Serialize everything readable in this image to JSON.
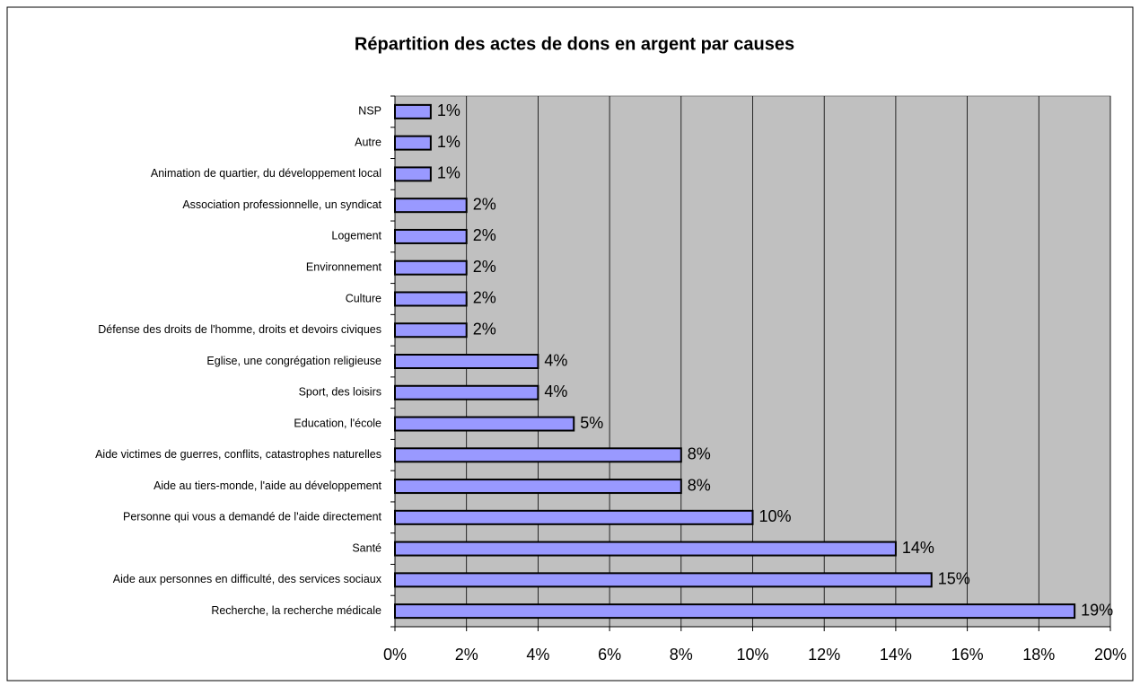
{
  "chart_data": {
    "type": "barh",
    "title": "Répartition des actes de dons en argent par causes",
    "categories": [
      "NSP",
      "Autre",
      "Animation de quartier, du développement local",
      "Association professionnelle, un syndicat",
      "Logement",
      "Environnement",
      "Culture",
      "Défense des droits de l'homme, droits et devoirs civiques",
      "Eglise, une congrégation religieuse",
      "Sport, des loisirs",
      "Education, l'école",
      "Aide victimes de guerres, conflits, catastrophes naturelles",
      "Aide au tiers-monde, l'aide au développement",
      "Personne qui vous a demandé de l'aide directement",
      "Santé",
      "Aide aux personnes en difficulté, des services sociaux",
      "Recherche, la recherche médicale"
    ],
    "values": [
      1,
      1,
      1,
      2,
      2,
      2,
      2,
      2,
      4,
      4,
      5,
      8,
      8,
      10,
      14,
      15,
      19
    ],
    "value_labels": [
      "1%",
      "1%",
      "1%",
      "2%",
      "2%",
      "2%",
      "2%",
      "2%",
      "4%",
      "4%",
      "5%",
      "8%",
      "8%",
      "10%",
      "14%",
      "15%",
      "19%"
    ],
    "color": "#9999ff",
    "xlim": [
      0,
      20
    ],
    "xticks": [
      {
        "value": 0,
        "label": "0%"
      },
      {
        "value": 2,
        "label": "2%"
      },
      {
        "value": 4,
        "label": "4%"
      },
      {
        "value": 6,
        "label": "6%"
      },
      {
        "value": 8,
        "label": "8%"
      },
      {
        "value": 10,
        "label": "10%"
      },
      {
        "value": 12,
        "label": "12%"
      },
      {
        "value": 14,
        "label": "14%"
      },
      {
        "value": 16,
        "label": "16%"
      },
      {
        "value": 18,
        "label": "18%"
      },
      {
        "value": 20,
        "label": "20%"
      }
    ],
    "grid": true
  }
}
